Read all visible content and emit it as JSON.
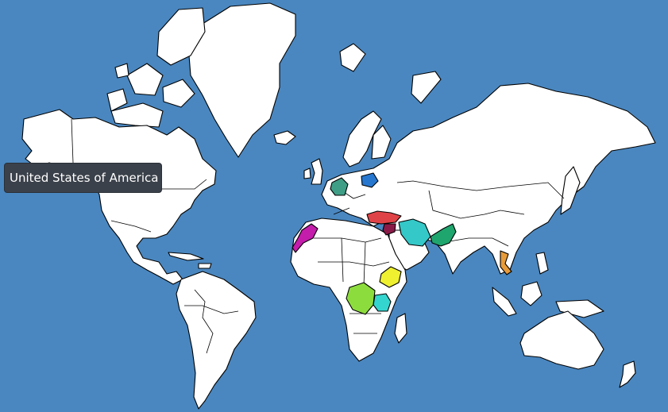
{
  "map": {
    "ocean_color": "#4a87c0",
    "land_color": "#ffffff",
    "border_color": "#000000",
    "highlighted_regions": [
      {
        "id": "germany",
        "color": "#3f9e86"
      },
      {
        "id": "belarus",
        "color": "#2777cf"
      },
      {
        "id": "morocco",
        "color": "#c41cab"
      },
      {
        "id": "turkey",
        "color": "#e04347"
      },
      {
        "id": "syria",
        "color": "#8a1a47"
      },
      {
        "id": "iran",
        "color": "#34c8c8"
      },
      {
        "id": "pakistan",
        "color": "#1fa56e"
      },
      {
        "id": "ethiopia",
        "color": "#eef030"
      },
      {
        "id": "dr-congo",
        "color": "#8ddc3d"
      },
      {
        "id": "tanzania",
        "color": "#34d5ce"
      },
      {
        "id": "vietnam",
        "color": "#e79b3a"
      }
    ]
  },
  "tooltip": {
    "text": "United States of America"
  }
}
